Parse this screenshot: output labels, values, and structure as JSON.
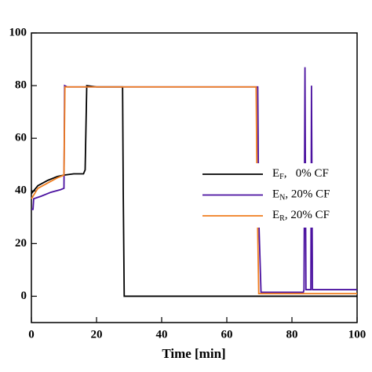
{
  "chart_data": {
    "type": "line",
    "xlabel": "Time [min]",
    "xlim": [
      0,
      100
    ],
    "xticks": [
      0,
      20,
      40,
      60,
      80,
      100
    ],
    "ylim": [
      -10,
      100
    ],
    "yticks": [
      0,
      20,
      40,
      60,
      80,
      100
    ],
    "series": [
      {
        "name": "E",
        "name_sub": "F",
        "name_rest": ",   0% CF",
        "color": "#000000",
        "x": [
          0,
          2,
          5,
          8,
          10,
          13,
          16,
          16.5,
          17,
          20,
          28,
          28.2,
          28.5,
          50,
          100
        ],
        "values": [
          39,
          42,
          44,
          45.5,
          46,
          46.5,
          46.5,
          48,
          80,
          79.5,
          79.5,
          40,
          0,
          0,
          0
        ]
      },
      {
        "name": "E",
        "name_sub": "N",
        "name_rest": ", 20% CF",
        "color": "#4b12a0",
        "x": [
          0,
          0.5,
          0.7,
          3,
          6,
          9,
          10,
          10.2,
          11,
          40,
          69.5,
          69.8,
          70.5,
          83.5,
          83.7,
          84,
          84.3,
          84.6,
          85.8,
          86,
          86.3,
          100
        ],
        "values": [
          33,
          33,
          37,
          38,
          39.5,
          40.5,
          41,
          80,
          79.5,
          79.5,
          79.5,
          30,
          1.5,
          1.5,
          2.5,
          87,
          2.5,
          2.5,
          2.5,
          80,
          2.5,
          2.5
        ]
      },
      {
        "name": "E",
        "name_sub": "R",
        "name_rest": ", 20% CF",
        "color": "#f07d1e",
        "x": [
          0,
          2,
          5,
          8,
          10,
          10.3,
          11,
          40,
          69,
          69.3,
          69.8,
          100
        ],
        "values": [
          37,
          41,
          43,
          45,
          46,
          79.5,
          79.5,
          79.5,
          79.5,
          40,
          1,
          1
        ]
      }
    ]
  }
}
